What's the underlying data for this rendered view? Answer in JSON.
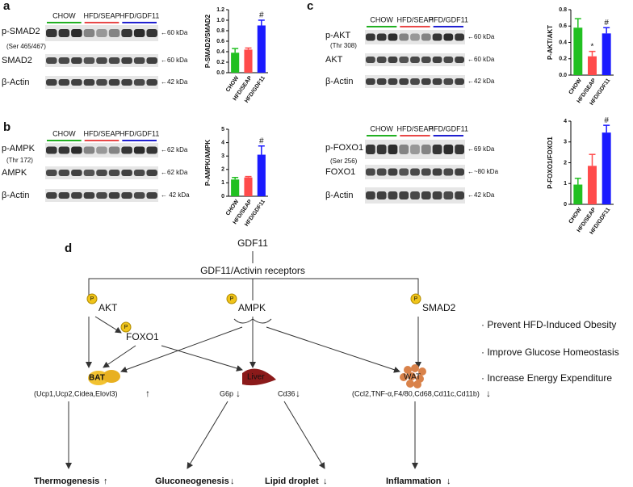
{
  "panel_labels": [
    "a",
    "b",
    "c",
    "d"
  ],
  "blots": [
    {
      "groups": [
        "CHOW",
        "HFD/SEAP",
        "HFD/GDF11"
      ],
      "rows": [
        {
          "label": "p-SMAD2",
          "sublabel": "(Ser 465/467)",
          "kda": "←60 kDa"
        },
        {
          "label": "SMAD2",
          "kda": "←60 kDa"
        },
        {
          "label": "β-Actin",
          "kda": "←42 kDa"
        }
      ]
    },
    {
      "groups": [
        "CHOW",
        "HFD/SEAP",
        "HFD/GDF11"
      ],
      "rows": [
        {
          "label": "p-AMPK",
          "sublabel": "(Thr 172)",
          "kda": "←62 kDa"
        },
        {
          "label": "AMPK",
          "kda": "←62 kDa"
        },
        {
          "label": "β-Actin",
          "kda": "← 42 kDa"
        }
      ]
    },
    {
      "groups": [
        "CHOW",
        "HFD/SEAP",
        "HFD/GDF11"
      ],
      "rows": [
        {
          "label": "p-AKT",
          "sublabel": "(Thr 308)",
          "kda": "←60 kDa"
        },
        {
          "label": "AKT",
          "kda": "←60 kDa"
        },
        {
          "label": "β-Actin",
          "kda": "←42 kDa"
        }
      ]
    },
    {
      "groups": [
        "CHOW",
        "HFD/SEAP",
        "HFD/GDF11"
      ],
      "rows": [
        {
          "label": "p-FOXO1",
          "sublabel": "(Ser 256)",
          "kda": "←69 kDa"
        },
        {
          "label": "FOXO1",
          "kda": "←~80 kDa"
        },
        {
          "label": "β-Actin",
          "kda": "←42 kDa"
        }
      ]
    }
  ],
  "chart_data": [
    {
      "type": "bar",
      "ylabel": "P-SMAD2/SMAD2",
      "categories": [
        "CHOW",
        "HFD/SEAP",
        "HFD/GDF11"
      ],
      "values": [
        0.38,
        0.44,
        0.9
      ],
      "errors": [
        0.08,
        0.03,
        0.1
      ],
      "colors": [
        "#22c022",
        "#ff4b4b",
        "#1a1aff"
      ],
      "annotations": [
        null,
        null,
        "#"
      ],
      "ylim": [
        0,
        1.2
      ],
      "yticks": [
        {
          "value": 0,
          "label": "0.0"
        },
        0.2,
        0.4,
        0.6,
        0.8,
        {
          "value": 1,
          "label": "1.0"
        },
        1.2
      ]
    },
    {
      "type": "bar",
      "ylabel": "P-AMPK/AMPK",
      "categories": [
        "CHOW",
        "HFD/SEAP",
        "HFD/GDF11"
      ],
      "values": [
        1.25,
        1.4,
        3.1
      ],
      "errors": [
        0.15,
        0.07,
        0.65
      ],
      "colors": [
        "#22c022",
        "#ff4b4b",
        "#1a1aff"
      ],
      "annotations": [
        null,
        null,
        "#"
      ],
      "ylim": [
        0,
        5
      ],
      "yticks": [
        0,
        1,
        2,
        3,
        4,
        5
      ]
    },
    {
      "type": "bar",
      "ylabel": "P-AKT/AKT",
      "categories": [
        "CHOW",
        "HFD/SEAP",
        "HFD/GDF11"
      ],
      "values": [
        0.58,
        0.23,
        0.51
      ],
      "errors": [
        0.11,
        0.06,
        0.07
      ],
      "colors": [
        "#22c022",
        "#ff4b4b",
        "#1a1aff"
      ],
      "annotations": [
        null,
        "*",
        "#"
      ],
      "ylim": [
        0,
        0.8
      ],
      "yticks": [
        {
          "value": 0,
          "label": "0.0"
        },
        0.2,
        0.4,
        0.6,
        0.8
      ]
    },
    {
      "type": "bar",
      "ylabel": "P-FOXO1/FOXO1",
      "categories": [
        "CHOW",
        "HFD/SEAP",
        "HFD/GDF11"
      ],
      "values": [
        0.95,
        1.85,
        3.45
      ],
      "errors": [
        0.3,
        0.55,
        0.35
      ],
      "colors": [
        "#22c022",
        "#ff4b4b",
        "#1a1aff"
      ],
      "annotations": [
        null,
        null,
        "#"
      ],
      "ylim": [
        0,
        4
      ],
      "yticks": [
        0,
        1,
        2,
        3,
        4
      ]
    }
  ],
  "diagram": {
    "ligand": "GDF11",
    "receptor": "GDF11/Activin receptors",
    "phospho": "P",
    "nodes": [
      "AKT",
      "AMPK",
      "SMAD2",
      "FOXO1"
    ],
    "tissues": [
      "BAT",
      "Liver",
      "WAT"
    ],
    "genes": [
      "(Ucp1,Ucp2,Cidea,Elovl3)",
      "G6p",
      "Cd36",
      "(Ccl2,TNF-α,F4/80,Cd68,Cd11c,Cd11b)"
    ],
    "up": "↑",
    "down": "↓",
    "outcomes": [
      "Thermogenesis",
      "Gluconeogenesis",
      "Lipid droplet",
      "Inflammation"
    ],
    "effects": [
      "· Prevent HFD-Induced Obesity",
      "· Improve Glucose Homeostasis",
      "· Increase Energy  Expenditure"
    ]
  }
}
